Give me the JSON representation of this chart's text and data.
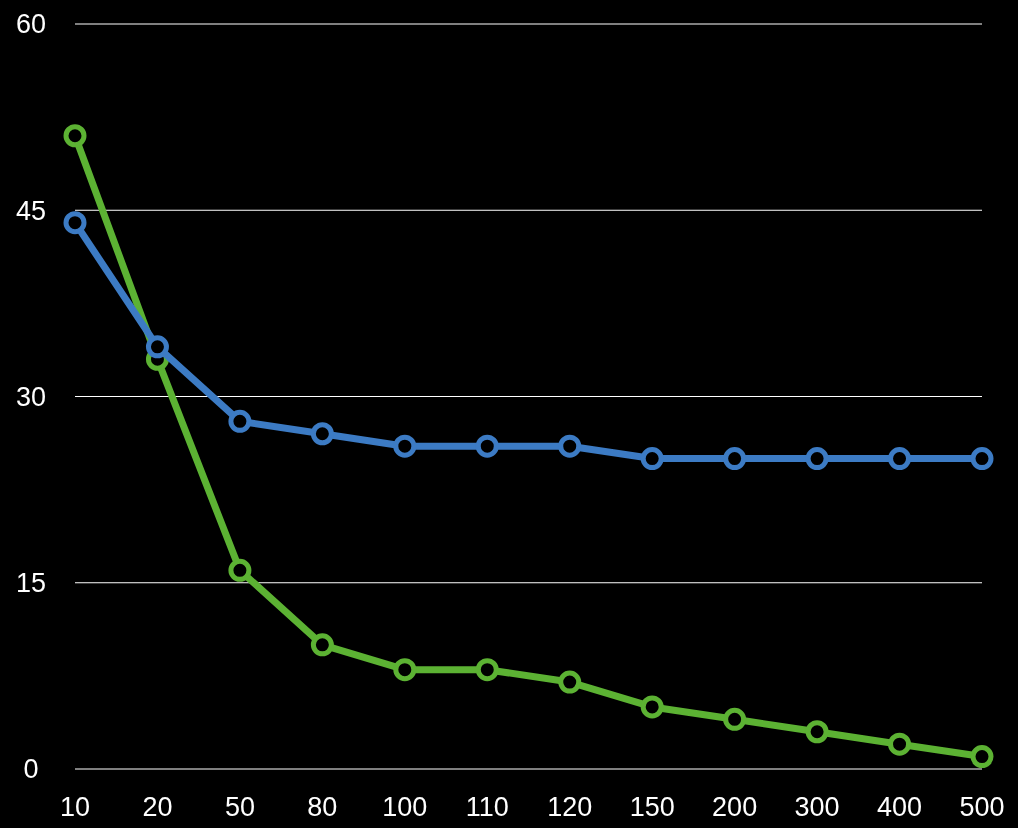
{
  "chart_data": {
    "type": "line",
    "categories": [
      "10",
      "20",
      "50",
      "80",
      "100",
      "110",
      "120",
      "150",
      "200",
      "300",
      "400",
      "500"
    ],
    "series": [
      {
        "color": "#3c7bc4",
        "values": [
          44,
          34,
          28,
          27,
          26,
          26,
          26,
          25,
          25,
          25,
          25,
          25
        ]
      },
      {
        "color": "#5cb233",
        "values": [
          51,
          33,
          16,
          10,
          8,
          8,
          7,
          5,
          4,
          3,
          2,
          1
        ]
      }
    ],
    "ylim": [
      0,
      60
    ],
    "yticks": [
      0,
      15,
      30,
      45,
      60
    ],
    "grid": "y",
    "marker": "circle",
    "line_style": "solid"
  }
}
